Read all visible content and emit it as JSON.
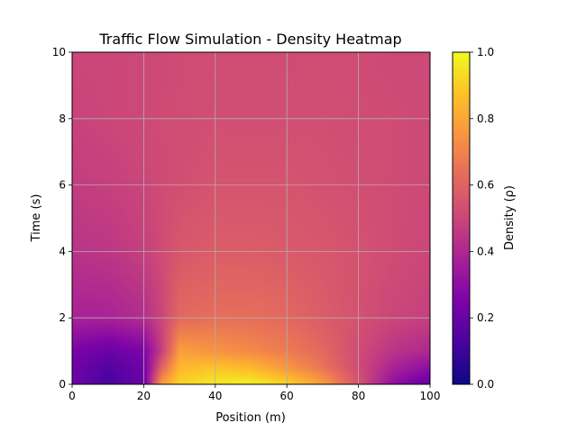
{
  "chart_data": {
    "type": "heatmap",
    "title": "Traffic Flow Simulation - Density Heatmap",
    "xlabel": "Position (m)",
    "ylabel": "Time (s)",
    "xlim": [
      0,
      100
    ],
    "ylim": [
      0,
      10
    ],
    "x_ticks": [
      "0",
      "20",
      "40",
      "60",
      "80",
      "100"
    ],
    "y_ticks": [
      "0",
      "2",
      "4",
      "6",
      "8",
      "10"
    ],
    "grid": true,
    "colormap": "plasma",
    "colorbar": {
      "label": "Density (ρ)",
      "range": [
        0.0,
        1.0
      ],
      "ticks": [
        "0.0",
        "0.2",
        "0.4",
        "0.6",
        "0.8",
        "1.0"
      ]
    },
    "description_of_field": {
      "time_samples": [
        0,
        0.5,
        1,
        2,
        4,
        6,
        8,
        10
      ],
      "position_samples": [
        0,
        10,
        20,
        25,
        30,
        40,
        50,
        60,
        70,
        80,
        90,
        100
      ],
      "density": [
        [
          0.22,
          0.12,
          0.2,
          0.78,
          0.92,
          0.97,
          0.99,
          0.92,
          0.78,
          0.55,
          0.3,
          0.18
        ],
        [
          0.22,
          0.15,
          0.22,
          0.6,
          0.85,
          0.88,
          0.85,
          0.76,
          0.66,
          0.52,
          0.38,
          0.3
        ],
        [
          0.25,
          0.2,
          0.25,
          0.48,
          0.78,
          0.75,
          0.72,
          0.68,
          0.62,
          0.52,
          0.44,
          0.4
        ],
        [
          0.38,
          0.38,
          0.42,
          0.5,
          0.62,
          0.64,
          0.64,
          0.62,
          0.58,
          0.54,
          0.5,
          0.48
        ],
        [
          0.44,
          0.45,
          0.48,
          0.52,
          0.56,
          0.58,
          0.58,
          0.57,
          0.56,
          0.54,
          0.52,
          0.5
        ],
        [
          0.47,
          0.48,
          0.5,
          0.52,
          0.53,
          0.55,
          0.55,
          0.55,
          0.54,
          0.53,
          0.52,
          0.51
        ],
        [
          0.49,
          0.5,
          0.51,
          0.52,
          0.52,
          0.53,
          0.53,
          0.53,
          0.53,
          0.52,
          0.52,
          0.51
        ],
        [
          0.5,
          0.5,
          0.51,
          0.51,
          0.52,
          0.52,
          0.52,
          0.52,
          0.52,
          0.52,
          0.51,
          0.51
        ]
      ]
    }
  }
}
